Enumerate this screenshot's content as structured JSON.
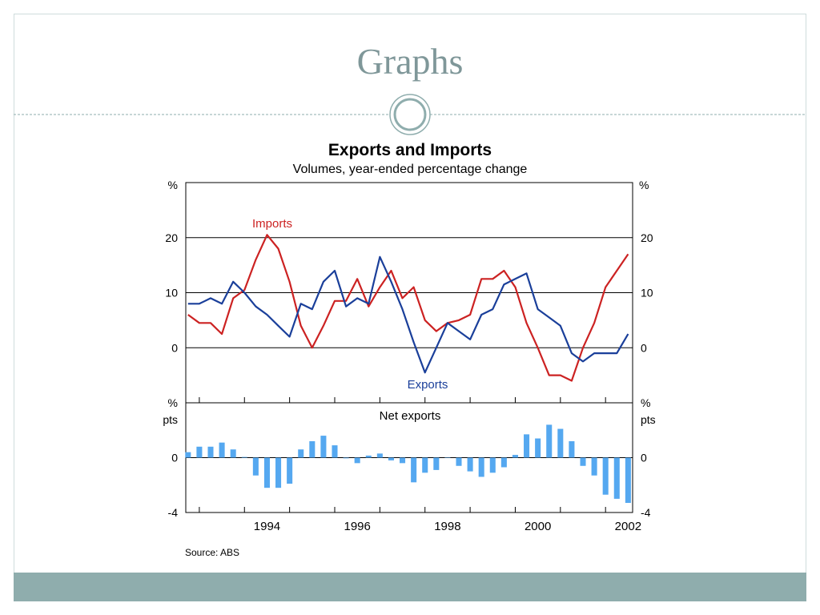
{
  "slide": {
    "title": "Graphs"
  },
  "colors": {
    "imports": "#cc2222",
    "exports": "#1a3f9a",
    "net": "#55a8f0",
    "accent": "#8fadad"
  },
  "chart_data": {
    "type": "line",
    "title": "Exports and Imports",
    "subtitle": "Volumes, year-ended percentage change",
    "source": "Source: ABS",
    "xlim": [
      1992.7,
      2002.6
    ],
    "x_ticks": [
      1994,
      1996,
      1998,
      2000,
      2002
    ],
    "top_panel": {
      "unit_left": "%",
      "unit_right": "%",
      "ylim": [
        -10,
        30
      ],
      "y_ticks": [
        0,
        10,
        20
      ],
      "series": [
        {
          "name": "Imports",
          "color": "#cc2222",
          "x": [
            1992.75,
            1993.0,
            1993.25,
            1993.5,
            1993.75,
            1994.0,
            1994.25,
            1994.5,
            1994.75,
            1995.0,
            1995.25,
            1995.5,
            1995.75,
            1996.0,
            1996.25,
            1996.5,
            1996.75,
            1997.0,
            1997.25,
            1997.5,
            1997.75,
            1998.0,
            1998.25,
            1998.5,
            1998.75,
            1999.0,
            1999.25,
            1999.5,
            1999.75,
            2000.0,
            2000.25,
            2000.5,
            2000.75,
            2001.0,
            2001.25,
            2001.5,
            2001.75,
            2002.0,
            2002.25,
            2002.5
          ],
          "values": [
            6,
            4.5,
            4.5,
            2.5,
            9,
            10.5,
            16,
            20.5,
            18,
            12,
            4,
            0,
            4,
            8.5,
            8.5,
            12.5,
            7.5,
            11,
            14,
            9,
            11,
            5,
            3,
            4.5,
            5,
            6,
            12.5,
            12.5,
            14,
            11,
            4.5,
            0,
            -5,
            -5,
            -6,
            0,
            4.5,
            11,
            14,
            17
          ]
        },
        {
          "name": "Exports",
          "color": "#1a3f9a",
          "x": [
            1992.75,
            1993.0,
            1993.25,
            1993.5,
            1993.75,
            1994.0,
            1994.25,
            1994.5,
            1994.75,
            1995.0,
            1995.25,
            1995.5,
            1995.75,
            1996.0,
            1996.25,
            1996.5,
            1996.75,
            1997.0,
            1997.25,
            1997.5,
            1997.75,
            1998.0,
            1998.25,
            1998.5,
            1998.75,
            1999.0,
            1999.25,
            1999.5,
            1999.75,
            2000.0,
            2000.25,
            2000.5,
            2000.75,
            2001.0,
            2001.25,
            2001.5,
            2001.75,
            2002.0,
            2002.25,
            2002.5
          ],
          "values": [
            8,
            8,
            9,
            8,
            12,
            10,
            7.5,
            6,
            4,
            2,
            8,
            7,
            12,
            14,
            7.5,
            9,
            8,
            16.5,
            12,
            7,
            1,
            -4.5,
            0,
            4.5,
            3,
            1.5,
            6,
            7,
            11.5,
            12.5,
            13.5,
            7,
            5.5,
            4,
            -1,
            -2.5,
            -1,
            -1,
            -1,
            2.5
          ]
        }
      ]
    },
    "bottom_panel": {
      "title": "Net exports",
      "unit_left": "%\npts",
      "unit_right": "%\npts",
      "ylim": [
        -4,
        4
      ],
      "y_ticks": [
        -4,
        0
      ],
      "type": "bar",
      "color": "#55a8f0",
      "x": [
        1992.75,
        1993.0,
        1993.25,
        1993.5,
        1993.75,
        1994.0,
        1994.25,
        1994.5,
        1994.75,
        1995.0,
        1995.25,
        1995.5,
        1995.75,
        1996.0,
        1996.25,
        1996.5,
        1996.75,
        1997.0,
        1997.25,
        1997.5,
        1997.75,
        1998.0,
        1998.25,
        1998.5,
        1998.75,
        1999.0,
        1999.25,
        1999.5,
        1999.75,
        2000.0,
        2000.25,
        2000.5,
        2000.75,
        2001.0,
        2001.25,
        2001.5,
        2001.75,
        2002.0,
        2002.25,
        2002.5
      ],
      "values": [
        0.4,
        0.8,
        0.8,
        1.1,
        0.6,
        0.05,
        -1.3,
        -2.2,
        -2.2,
        -1.9,
        0.6,
        1.2,
        1.6,
        0.9,
        -0.05,
        -0.4,
        0.15,
        0.3,
        -0.2,
        -0.4,
        -1.8,
        -1.1,
        -0.9,
        0,
        -0.6,
        -1.0,
        -1.4,
        -1.1,
        -0.7,
        0.2,
        1.7,
        1.4,
        2.4,
        2.1,
        1.2,
        -0.6,
        -1.3,
        -2.7,
        -3.0,
        -3.3
      ]
    }
  }
}
